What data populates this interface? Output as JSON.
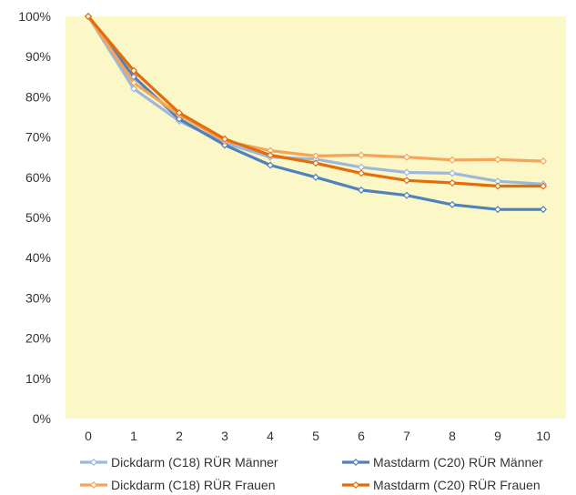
{
  "chart_data": {
    "type": "line",
    "title": "",
    "xlabel": "",
    "ylabel": "",
    "x": [
      0,
      1,
      2,
      3,
      4,
      5,
      6,
      7,
      8,
      9,
      10
    ],
    "ylim": [
      0,
      100
    ],
    "y_ticks": [
      "0%",
      "10%",
      "20%",
      "30%",
      "40%",
      "50%",
      "60%",
      "70%",
      "80%",
      "90%",
      "100%"
    ],
    "x_ticks": [
      "0",
      "1",
      "2",
      "3",
      "4",
      "5",
      "6",
      "7",
      "8",
      "9",
      "10"
    ],
    "grid": false,
    "legend_position": "bottom",
    "plot_background": "#fbf7c6",
    "series": [
      {
        "name": "Dickdarm (C18) RÜR Männer",
        "color": "#9db8dd",
        "values": [
          100,
          82,
          74,
          68.5,
          65,
          64.5,
          62.5,
          61.2,
          61,
          59,
          58.3
        ]
      },
      {
        "name": "Mastdarm (C20) RÜR Männer",
        "color": "#4f81bd",
        "values": [
          100,
          85,
          74.5,
          68,
          63,
          60,
          56.8,
          55.5,
          53.2,
          52,
          52
        ]
      },
      {
        "name": "Dickdarm (C18) RÜR Frauen",
        "color": "#f5a45a",
        "values": [
          100,
          83.5,
          75.5,
          69,
          66.6,
          65.3,
          65.5,
          65,
          64.3,
          64.4,
          64
        ]
      },
      {
        "name": "Mastdarm (C20) RÜR Frauen",
        "color": "#e46c0a",
        "values": [
          100,
          86.5,
          76,
          69.5,
          65.5,
          63.5,
          61,
          59.2,
          58.6,
          57.8,
          57.8
        ]
      }
    ]
  }
}
